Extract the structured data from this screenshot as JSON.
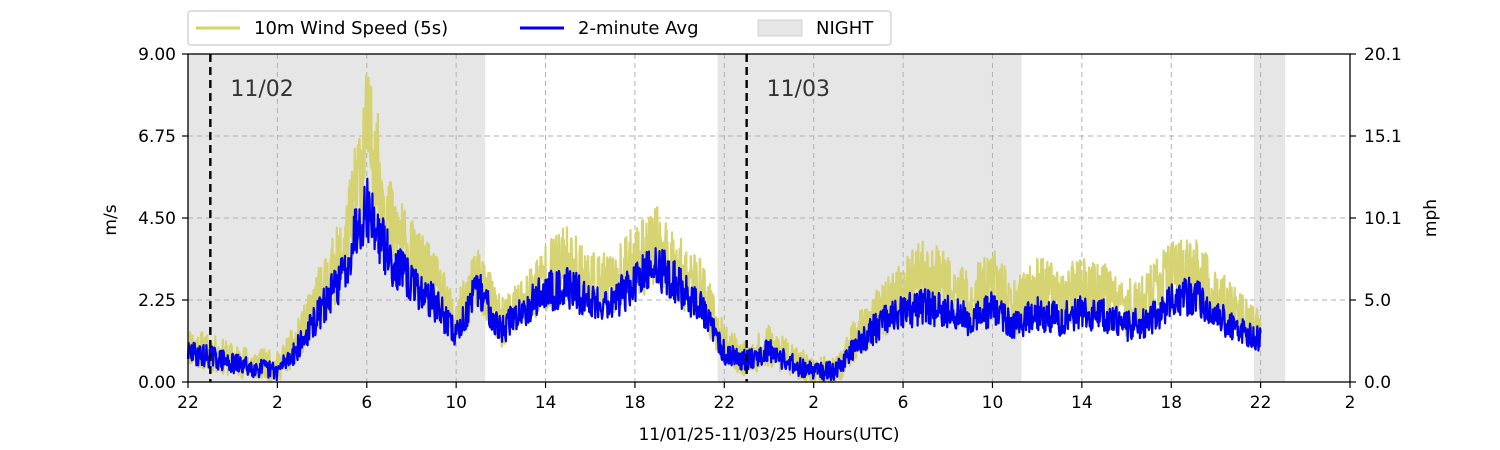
{
  "chart_data": {
    "type": "line",
    "xlabel": "11/01/25-11/03/25  Hours(UTC)",
    "ylabel_left": "m/s",
    "ylabel_right": "mph",
    "xlim": [
      -2,
      50
    ],
    "ylim": [
      0,
      9.0
    ],
    "x_ticks": [
      -2,
      2,
      6,
      10,
      14,
      18,
      22,
      26,
      30,
      34,
      38,
      42,
      46,
      50
    ],
    "x_tick_labels": [
      "22",
      "2",
      "6",
      "10",
      "14",
      "18",
      "22",
      "2",
      "6",
      "10",
      "14",
      "18",
      "22",
      "2"
    ],
    "y_ticks_left": [
      0,
      2.25,
      4.5,
      6.75,
      9.0
    ],
    "y_tick_labels_left": [
      "0.00",
      "2.25",
      "4.50",
      "6.75",
      "9.00"
    ],
    "y_tick_labels_right": [
      "0.0",
      "5.0",
      "10.1",
      "15.1",
      "20.1"
    ],
    "grid": true,
    "legend_position": "top-left",
    "night_periods": [
      [
        -2,
        11.3
      ],
      [
        21.7,
        35.3
      ],
      [
        45.7,
        47.1
      ]
    ],
    "date_markers": [
      {
        "x": -1,
        "label": "11/02"
      },
      {
        "x": 23,
        "label": "11/03"
      }
    ],
    "series": [
      {
        "name": "10m Wind Speed (5s)",
        "color": "#d4d26a",
        "x": [
          -2,
          -1,
          0,
          1,
          2,
          3,
          4,
          5,
          5.5,
          6,
          6.5,
          7,
          8,
          9,
          10,
          11,
          12,
          13,
          14,
          15,
          16,
          17,
          18,
          19,
          20,
          21,
          22,
          23,
          24,
          25,
          26,
          27,
          28,
          29,
          30,
          31,
          32,
          33,
          34,
          35,
          36,
          37,
          38,
          39,
          40,
          41,
          42,
          43,
          44,
          45,
          46
        ],
        "y": [
          1.0,
          0.8,
          0.6,
          0.5,
          0.4,
          1.2,
          2.5,
          3.6,
          5.2,
          6.9,
          5.8,
          4.4,
          3.4,
          2.7,
          1.6,
          2.9,
          1.6,
          2.2,
          2.9,
          3.3,
          2.7,
          2.6,
          3.3,
          3.7,
          3.0,
          2.5,
          1.0,
          0.6,
          1.0,
          0.6,
          0.3,
          0.3,
          1.3,
          1.9,
          2.5,
          3.0,
          2.6,
          2.2,
          2.8,
          2.0,
          2.6,
          2.3,
          2.6,
          2.4,
          2.0,
          2.3,
          2.9,
          3.0,
          2.4,
          1.8,
          1.3
        ]
      },
      {
        "name": "2-minute Avg",
        "color": "#0000ee",
        "x": [
          -2,
          -1,
          0,
          1,
          2,
          3,
          4,
          5,
          5.5,
          6,
          6.5,
          7,
          8,
          9,
          10,
          11,
          12,
          13,
          14,
          15,
          16,
          17,
          18,
          19,
          20,
          21,
          22,
          23,
          24,
          25,
          26,
          27,
          28,
          29,
          30,
          31,
          32,
          33,
          34,
          35,
          36,
          37,
          38,
          39,
          40,
          41,
          42,
          43,
          44,
          45,
          46
        ],
        "y": [
          0.8,
          0.7,
          0.5,
          0.4,
          0.3,
          1.0,
          2.0,
          3.0,
          4.2,
          4.8,
          4.1,
          3.4,
          2.7,
          2.2,
          1.3,
          2.6,
          1.4,
          2.0,
          2.5,
          2.6,
          2.2,
          2.2,
          2.7,
          3.2,
          2.6,
          2.0,
          0.8,
          0.6,
          0.9,
          0.5,
          0.3,
          0.3,
          1.1,
          1.6,
          1.9,
          2.1,
          1.9,
          1.7,
          2.0,
          1.5,
          1.9,
          1.7,
          1.9,
          1.8,
          1.5,
          1.7,
          2.2,
          2.4,
          1.8,
          1.5,
          1.1
        ]
      }
    ]
  },
  "legend": {
    "items": [
      {
        "label": "10m Wind Speed (5s)",
        "kind": "line",
        "color": "#d4d26a"
      },
      {
        "label": "2-minute Avg",
        "kind": "line",
        "color": "#0000ee"
      },
      {
        "label": "NIGHT",
        "kind": "patch",
        "color": "#e6e6e6"
      }
    ]
  }
}
